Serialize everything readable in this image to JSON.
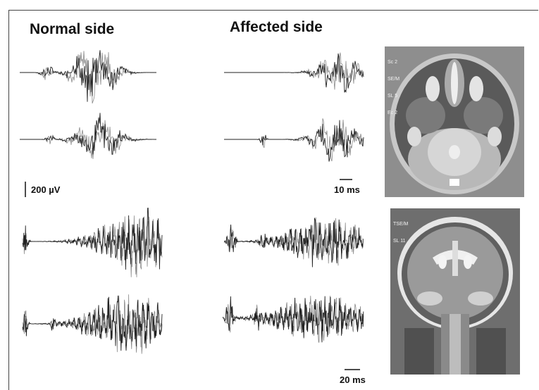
{
  "headings": {
    "normal": "Normal side",
    "affected": "Affected side"
  },
  "scale_bars": {
    "amplitude": "200 µV",
    "time_upper": "10 ms",
    "time_lower": "20 ms"
  },
  "mri_axial": {
    "labels": [
      "Sc 2",
      "SE/M",
      "SL 5",
      "Ec 2"
    ]
  },
  "mri_coronal": {
    "labels": [
      "TSE/M",
      "SL 11"
    ]
  },
  "colors": {
    "trace": "#222222",
    "trace_secondary": "#8a8a8a",
    "mri_bright": "#e8e8e8",
    "mri_dark": "#3a3a3a"
  }
}
